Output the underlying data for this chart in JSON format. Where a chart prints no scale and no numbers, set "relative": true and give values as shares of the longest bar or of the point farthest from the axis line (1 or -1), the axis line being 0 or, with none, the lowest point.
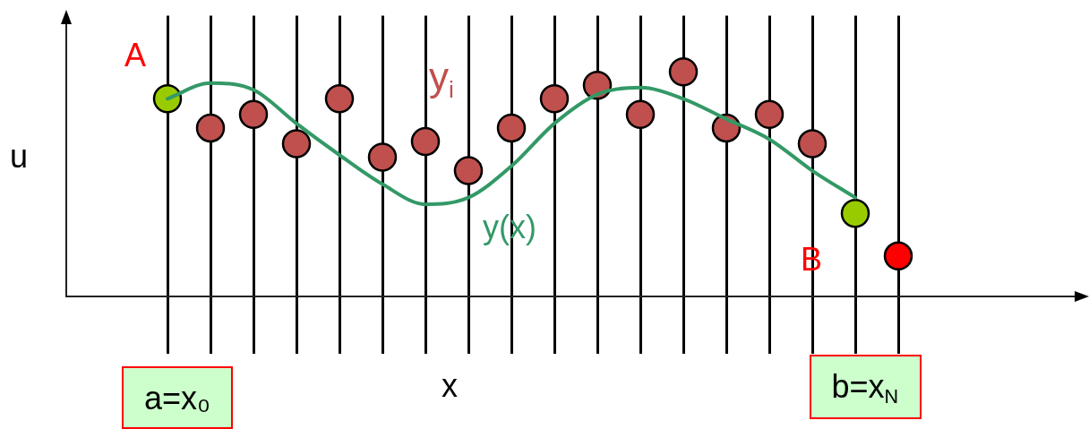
{
  "chart_data": {
    "type": "line",
    "relative": true,
    "xlabel": "x",
    "ylabel": "u",
    "grid": "x",
    "marker": "circle",
    "categories": [
      "a=x₀",
      null,
      null,
      null,
      null,
      null,
      null,
      null,
      null,
      null,
      null,
      null,
      null,
      null,
      null,
      null,
      "b=x$_{N}$",
      null
    ],
    "series": [
      {
        "name": "y(x)",
        "marker": "none",
        "color": "#339966",
        "values": [
          0.88,
          0.95,
          0.92,
          0.77,
          0.63,
          0.5,
          0.41,
          0.44,
          0.58,
          0.77,
          0.9,
          0.93,
          0.88,
          0.79,
          0.7,
          0.56,
          0.44,
          null
        ]
      },
      {
        "name": "y$_{i}$",
        "type": "scatter",
        "color": "#c0504d",
        "values": [
          null,
          0.75,
          0.81,
          0.68,
          0.88,
          0.62,
          0.69,
          0.56,
          0.75,
          0.88,
          0.94,
          0.81,
          1,
          0.75,
          0.81,
          0.68,
          null,
          null
        ]
      },
      {
        "type": "scatter",
        "color": "#99cc00",
        "values": [
          0.88,
          null,
          null,
          null,
          null,
          null,
          null,
          null,
          null,
          null,
          null,
          null,
          null,
          null,
          null,
          null,
          0.37,
          null
        ]
      },
      {
        "type": "scatter",
        "color": "#ff0000",
        "values": [
          null,
          null,
          null,
          null,
          null,
          null,
          null,
          null,
          null,
          null,
          null,
          null,
          null,
          null,
          null,
          null,
          null,
          0.18
        ]
      }
    ],
    "annotations": [
      "A",
      "B"
    ]
  }
}
